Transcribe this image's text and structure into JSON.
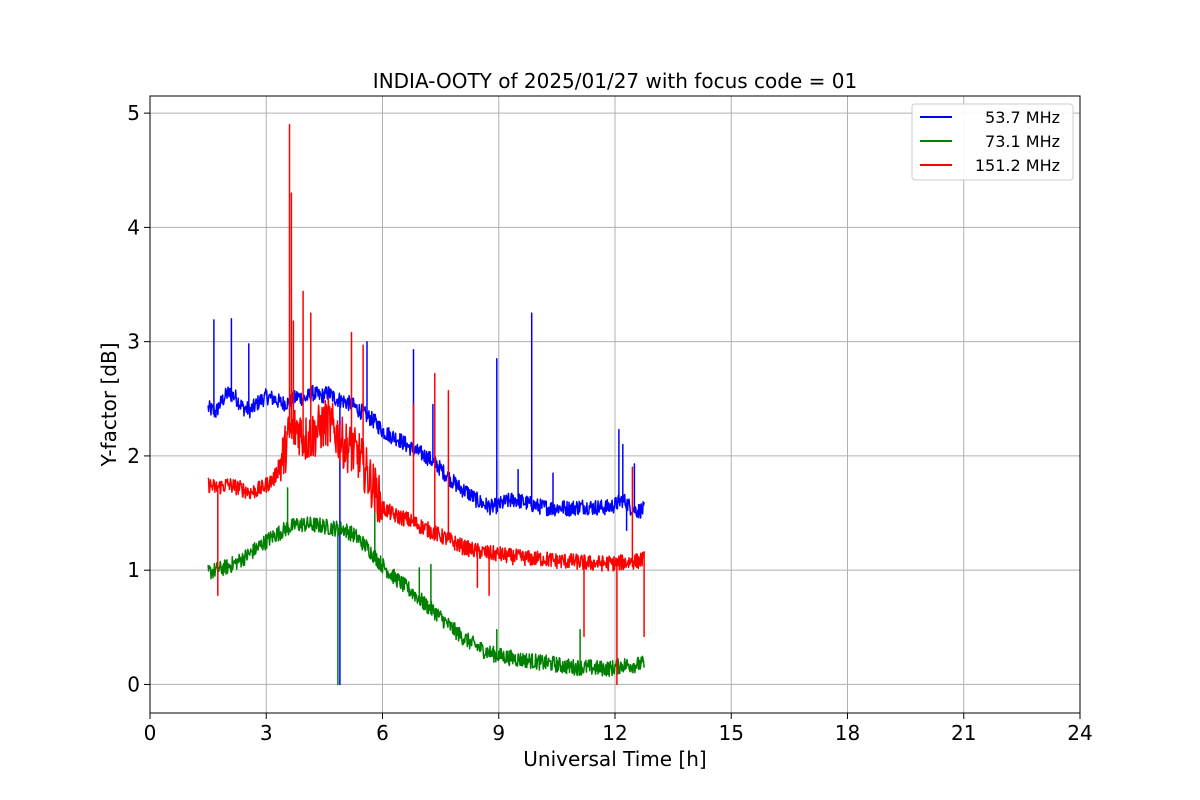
{
  "chart_data": {
    "type": "line",
    "title": "INDIA-OOTY of 2025/01/27 with focus code = 01",
    "xlabel": "Universal Time [h]",
    "ylabel": "Y-factor [dB]",
    "xlim": [
      0,
      24
    ],
    "ylim": [
      -0.25,
      5.15
    ],
    "xticks": [
      0,
      3,
      6,
      9,
      12,
      15,
      18,
      21,
      24
    ],
    "yticks": [
      0,
      1,
      2,
      3,
      4,
      5
    ],
    "grid": true,
    "legend_position": "top-right",
    "series": [
      {
        "name": "53.7 MHz",
        "color": "#0000ff",
        "x": [
          1.5,
          1.7,
          1.8,
          2.0,
          2.2,
          2.4,
          2.6,
          2.8,
          3.0,
          3.2,
          3.4,
          3.6,
          3.8,
          4.0,
          4.2,
          4.4,
          4.6,
          4.8,
          5.0,
          5.2,
          5.4,
          5.6,
          5.8,
          6.0,
          6.2,
          6.4,
          6.6,
          6.8,
          7.0,
          7.2,
          7.4,
          7.6,
          7.8,
          8.0,
          8.2,
          8.4,
          8.6,
          8.8,
          9.0,
          9.2,
          9.4,
          9.6,
          9.8,
          10.0,
          10.2,
          10.4,
          10.6,
          10.8,
          11.0,
          11.2,
          11.4,
          11.6,
          11.8,
          12.0,
          12.2,
          12.4,
          12.6,
          12.75
        ],
        "y": [
          2.42,
          2.38,
          2.45,
          2.55,
          2.52,
          2.42,
          2.4,
          2.47,
          2.52,
          2.5,
          2.46,
          2.47,
          2.52,
          2.5,
          2.55,
          2.52,
          2.55,
          2.5,
          2.48,
          2.45,
          2.4,
          2.35,
          2.3,
          2.22,
          2.18,
          2.15,
          2.1,
          2.05,
          2.02,
          1.98,
          1.92,
          1.85,
          1.78,
          1.72,
          1.68,
          1.62,
          1.58,
          1.55,
          1.57,
          1.6,
          1.62,
          1.6,
          1.58,
          1.56,
          1.55,
          1.54,
          1.55,
          1.54,
          1.55,
          1.56,
          1.55,
          1.55,
          1.55,
          1.57,
          1.62,
          1.55,
          1.52,
          1.53
        ],
        "spikes": [
          [
            1.65,
            3.19
          ],
          [
            2.1,
            3.2
          ],
          [
            2.55,
            2.98
          ],
          [
            4.9,
            0.0
          ],
          [
            5.6,
            3.0
          ],
          [
            6.8,
            2.93
          ],
          [
            7.3,
            2.45
          ],
          [
            8.95,
            2.85
          ],
          [
            9.85,
            3.25
          ],
          [
            9.5,
            1.88
          ],
          [
            10.4,
            1.85
          ],
          [
            12.1,
            2.23
          ],
          [
            12.2,
            2.1
          ],
          [
            12.5,
            1.93
          ],
          [
            12.3,
            1.35
          ]
        ]
      },
      {
        "name": "73.1 MHz",
        "color": "#008000",
        "x": [
          1.5,
          1.7,
          2.0,
          2.3,
          2.6,
          2.9,
          3.2,
          3.5,
          3.8,
          4.1,
          4.4,
          4.7,
          5.0,
          5.3,
          5.6,
          5.9,
          6.2,
          6.5,
          6.8,
          7.1,
          7.4,
          7.7,
          8.0,
          8.3,
          8.6,
          8.9,
          9.2,
          9.5,
          9.8,
          10.1,
          10.4,
          10.7,
          11.0,
          11.3,
          11.6,
          11.9,
          12.2,
          12.5,
          12.75
        ],
        "y": [
          0.98,
          1.0,
          1.03,
          1.08,
          1.15,
          1.23,
          1.3,
          1.36,
          1.4,
          1.4,
          1.39,
          1.37,
          1.36,
          1.3,
          1.2,
          1.08,
          0.97,
          0.88,
          0.8,
          0.7,
          0.62,
          0.52,
          0.43,
          0.36,
          0.3,
          0.26,
          0.24,
          0.22,
          0.21,
          0.19,
          0.18,
          0.16,
          0.15,
          0.15,
          0.14,
          0.14,
          0.17,
          0.17,
          0.18
        ],
        "spikes": [
          [
            3.55,
            1.72
          ],
          [
            4.85,
            0.0
          ],
          [
            5.8,
            1.6
          ],
          [
            6.95,
            1.02
          ],
          [
            7.25,
            1.05
          ],
          [
            8.95,
            0.48
          ],
          [
            11.1,
            0.48
          ]
        ]
      },
      {
        "name": "151.2 MHz",
        "color": "#ff0000",
        "x": [
          1.5,
          1.7,
          2.0,
          2.3,
          2.6,
          2.9,
          3.2,
          3.4,
          3.6,
          3.8,
          4.0,
          4.2,
          4.4,
          4.6,
          4.8,
          5.0,
          5.2,
          5.4,
          5.6,
          5.8,
          6.0,
          6.3,
          6.6,
          6.9,
          7.2,
          7.5,
          7.8,
          8.1,
          8.4,
          8.7,
          9.0,
          9.3,
          9.6,
          9.9,
          10.2,
          10.5,
          10.8,
          11.1,
          11.4,
          11.7,
          12.0,
          12.3,
          12.6,
          12.75
        ],
        "y": [
          1.75,
          1.72,
          1.75,
          1.72,
          1.68,
          1.72,
          1.8,
          1.95,
          2.2,
          2.25,
          2.15,
          2.18,
          2.25,
          2.3,
          2.2,
          2.1,
          2.05,
          2.0,
          1.85,
          1.7,
          1.55,
          1.48,
          1.45,
          1.4,
          1.35,
          1.3,
          1.25,
          1.2,
          1.17,
          1.15,
          1.14,
          1.12,
          1.11,
          1.1,
          1.1,
          1.08,
          1.08,
          1.07,
          1.06,
          1.06,
          1.06,
          1.07,
          1.08,
          1.1
        ],
        "spikes": [
          [
            1.75,
            0.78
          ],
          [
            3.6,
            4.9
          ],
          [
            3.65,
            4.3
          ],
          [
            3.7,
            3.18
          ],
          [
            3.95,
            3.44
          ],
          [
            4.15,
            3.25
          ],
          [
            5.2,
            3.08
          ],
          [
            5.5,
            2.97
          ],
          [
            6.8,
            2.45
          ],
          [
            7.35,
            2.72
          ],
          [
            7.7,
            2.57
          ],
          [
            8.45,
            0.85
          ],
          [
            8.75,
            0.78
          ],
          [
            11.2,
            0.42
          ],
          [
            12.05,
            0.0
          ],
          [
            12.45,
            1.9
          ],
          [
            12.75,
            0.42
          ]
        ]
      }
    ]
  }
}
